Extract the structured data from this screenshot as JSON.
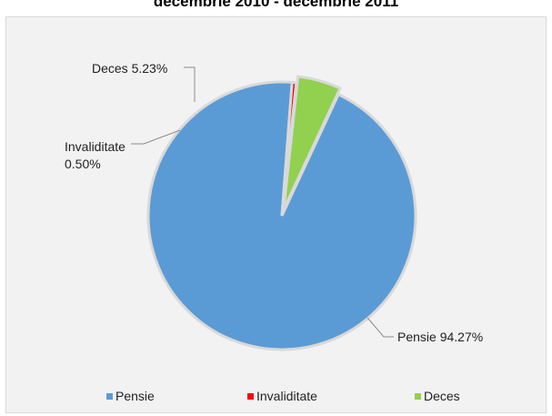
{
  "chart_data": {
    "type": "pie",
    "title": "decembrie 2010 - decembrie 2011",
    "categories": [
      "Pensie",
      "Invaliditate",
      "Deces"
    ],
    "values": [
      94.27,
      0.5,
      5.23
    ],
    "colors": [
      "#5b9bd5",
      "#ff0000",
      "#92d050"
    ],
    "data_labels": [
      "Pensie 94.27%",
      "Invaliditate 0.50%",
      "Deces  5.23%"
    ],
    "legend": {
      "position": "bottom",
      "entries": [
        "Pensie",
        "Invaliditate",
        "Deces"
      ]
    }
  }
}
